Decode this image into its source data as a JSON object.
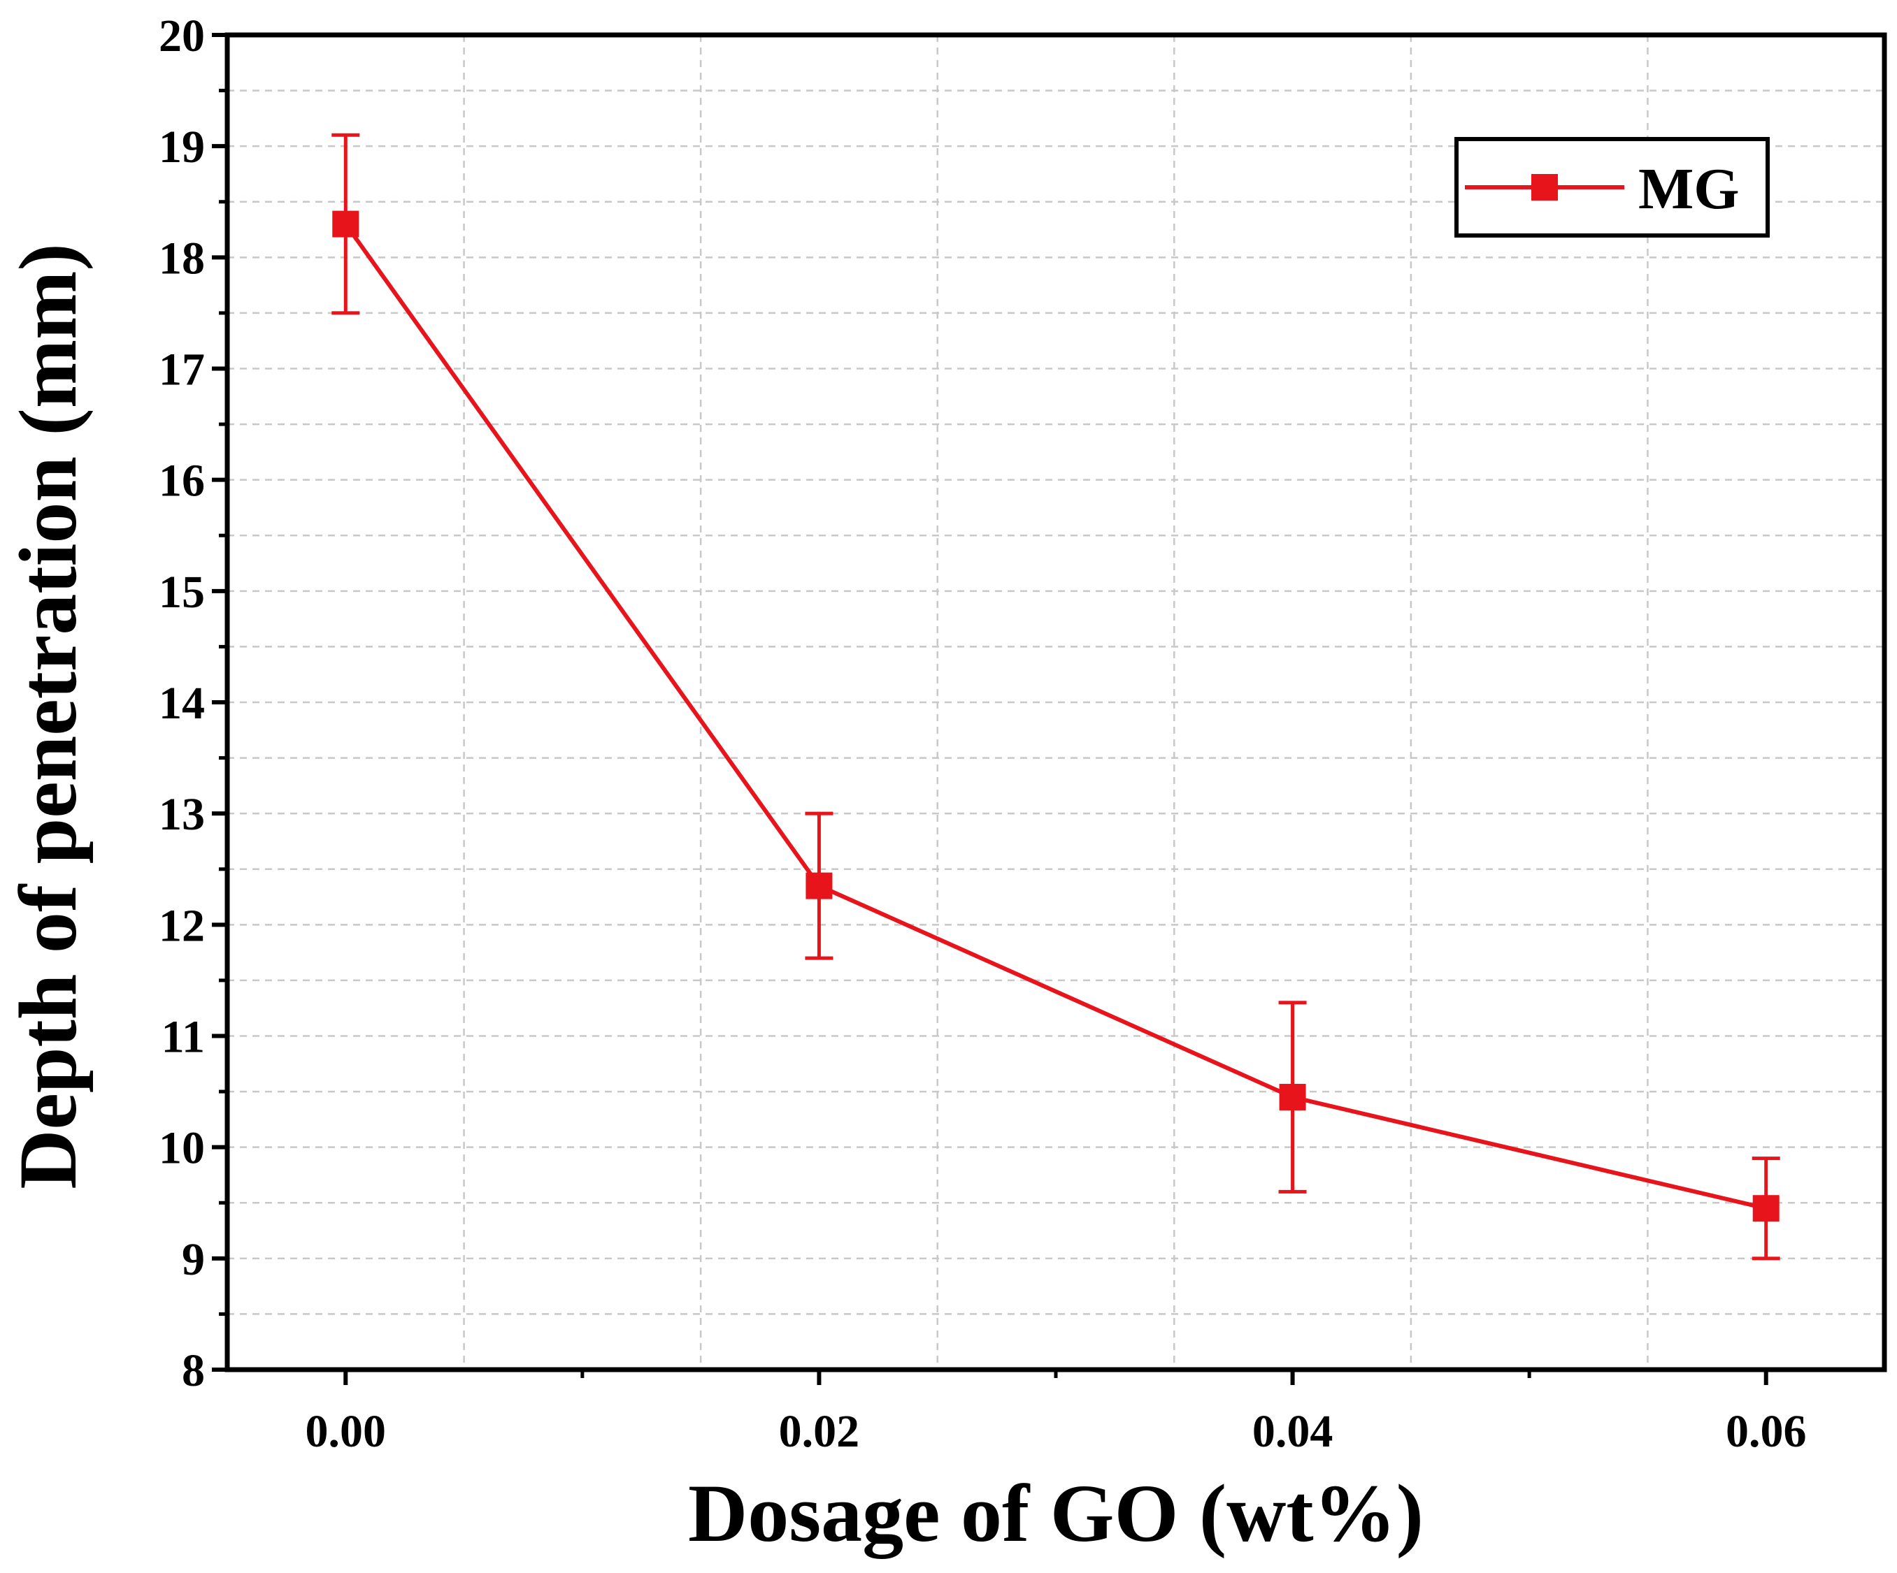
{
  "chart_data": {
    "type": "line",
    "title": "",
    "xlabel": "Dosage of GO (wt%)",
    "ylabel": "Depth of penetration (mm)",
    "xlim": [
      -0.005,
      0.065
    ],
    "ylim": [
      8,
      20
    ],
    "x_ticks": [
      0.0,
      0.02,
      0.04,
      0.06
    ],
    "x_tick_labels": [
      "0.00",
      "0.02",
      "0.04",
      "0.06"
    ],
    "y_ticks": [
      8,
      9,
      10,
      11,
      12,
      13,
      14,
      15,
      16,
      17,
      18,
      19,
      20
    ],
    "y_tick_labels": [
      "8",
      "9",
      "10",
      "11",
      "12",
      "13",
      "14",
      "15",
      "16",
      "17",
      "18",
      "19",
      "20"
    ],
    "grid": true,
    "legend_position": "top-right",
    "series": [
      {
        "name": "MG",
        "color": "#e8141b",
        "marker": "square",
        "x": [
          0.0,
          0.02,
          0.04,
          0.06
        ],
        "values": [
          18.3,
          12.35,
          10.45,
          9.45
        ],
        "error_upper": [
          19.1,
          13.0,
          11.3,
          9.9
        ],
        "error_lower": [
          17.5,
          11.7,
          9.6,
          9.0
        ]
      }
    ]
  }
}
